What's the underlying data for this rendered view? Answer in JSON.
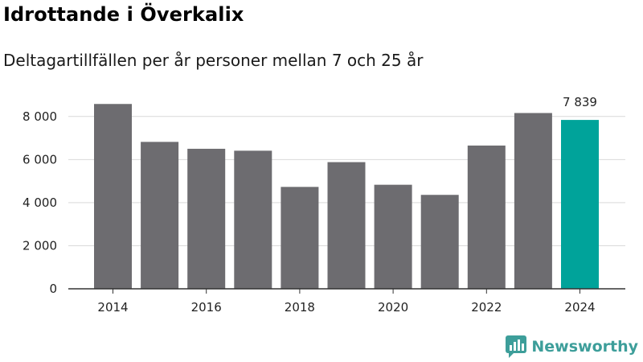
{
  "title": "Idrottande i Överkalix",
  "subtitle": "Deltagartillfällen per år personer mellan 7 och 25 år",
  "brand": {
    "name": "Newsworthy",
    "icon": "newsworthy-logo-icon"
  },
  "colors": {
    "bar": "#6d6c70",
    "highlight": "#00a39a",
    "grid": "#d9d9d9",
    "axis": "#333333"
  },
  "chart_data": {
    "type": "bar",
    "title": "Idrottande i Överkalix",
    "subtitle": "Deltagartillfällen per år personer mellan 7 och 25 år",
    "categories": [
      "2014",
      "2015",
      "2016",
      "2017",
      "2018",
      "2019",
      "2020",
      "2021",
      "2022",
      "2023",
      "2024"
    ],
    "values": [
      8580,
      6820,
      6500,
      6410,
      4730,
      5880,
      4830,
      4360,
      6650,
      8160,
      7839
    ],
    "highlight_index": 10,
    "highlight_label": "7 839",
    "x_tick_labels": [
      "2014",
      "2016",
      "2018",
      "2020",
      "2022",
      "2024"
    ],
    "y_ticks": [
      0,
      2000,
      4000,
      6000,
      8000
    ],
    "y_tick_labels": [
      "0",
      "2 000",
      "4 000",
      "6 000",
      "8 000"
    ],
    "ylim": [
      0,
      9000
    ],
    "grid": true,
    "xlabel": "",
    "ylabel": ""
  }
}
